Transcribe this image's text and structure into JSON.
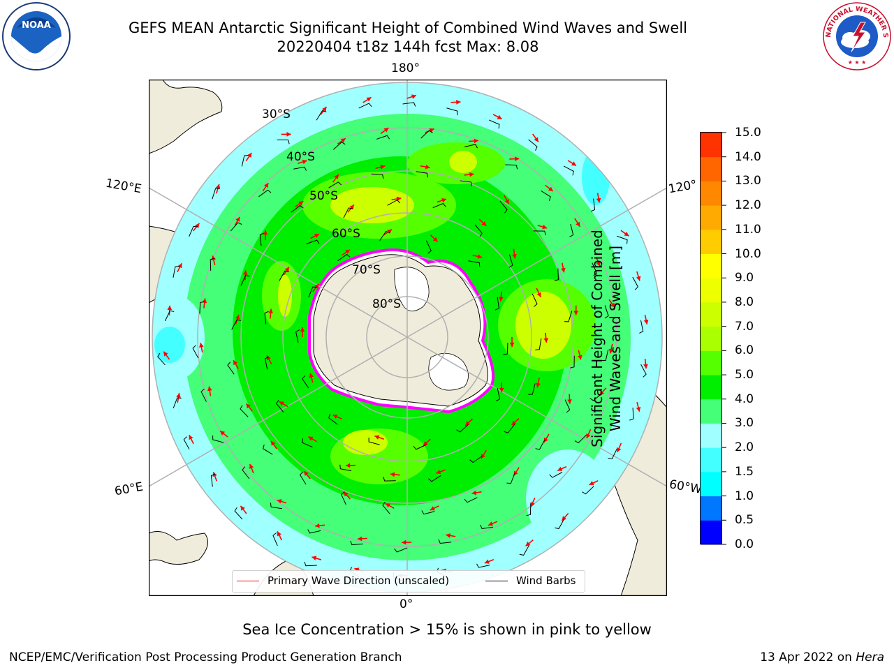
{
  "title": {
    "line1": "GEFS MEAN Antarctic Significant Height of Combined Wind Waves and Swell",
    "line2": "20220404 t18z 144h fcst   Max: 8.08"
  },
  "logos": {
    "noaa": {
      "text": "NOAA",
      "icon": "noaa-logo"
    },
    "nws": {
      "text": "NATIONAL WEATHER SERVICE",
      "icon": "nws-logo"
    }
  },
  "map": {
    "projection": "south-polar-stereographic",
    "longitude_labels": {
      "top": "180°",
      "bottom": "0°",
      "left_upper": "120°E",
      "left_lower": "60°E",
      "right_upper": "120°",
      "right_lower": "60°W"
    },
    "latitude_labels": [
      "30°S",
      "40°S",
      "50°S",
      "60°S",
      "70°S",
      "80°S"
    ],
    "colors": {
      "land": "#efecdb",
      "ice_shelf": "#ffffff",
      "ice_edge": [
        "#ff00ff",
        "#ffa500"
      ],
      "grid": "#b0b0b0"
    }
  },
  "legend": {
    "wave_label": "Primary Wave Direction (unscaled)",
    "wave_color": "#ff0000",
    "wind_label": "Wind Barbs",
    "wind_color": "#000000"
  },
  "colorbar": {
    "label_line1": "Significant Height of Combined",
    "label_line2": "Wind Waves and Swell [m]",
    "ticks": [
      "15.0",
      "14.0",
      "13.0",
      "12.0",
      "11.0",
      "10.0",
      "9.0",
      "8.0",
      "7.0",
      "6.0",
      "5.0",
      "4.0",
      "3.0",
      "2.0",
      "1.5",
      "1.0",
      "0.5",
      "0.0"
    ],
    "colors": [
      "#0000ff",
      "#0077ff",
      "#00ffff",
      "#44ffff",
      "#a0ffff",
      "#44ff77",
      "#00ee00",
      "#55ff00",
      "#aaff00",
      "#ccff00",
      "#eeff00",
      "#ffff00",
      "#ffcc00",
      "#ffaa00",
      "#ff8800",
      "#ff6600",
      "#ff3300",
      "#ff0000"
    ]
  },
  "footer": {
    "note": "Sea Ice Concentration > 15% is shown in pink to yellow",
    "left": "NCEP/EMC/Verification Post Processing Product Generation Branch",
    "date": "13 Apr 2022 on ",
    "machine": "Hera"
  }
}
